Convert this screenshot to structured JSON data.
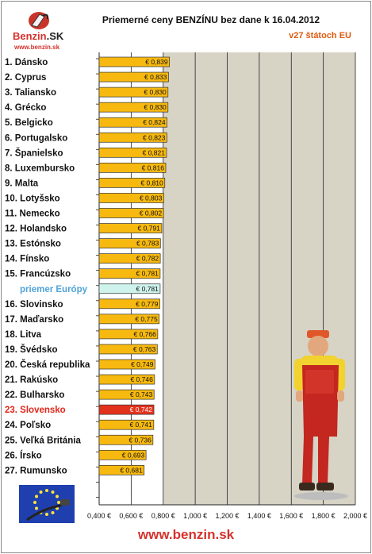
{
  "logo": {
    "word_main": "Benzin",
    "word_suffix": ".SK",
    "url": "www.benzin.sk"
  },
  "footer": {
    "url": "www.benzin.sk"
  },
  "chart_data": {
    "type": "bar",
    "orientation": "horizontal",
    "title": "Priemerné ceny BENZÍNU bez dane k 16.04.2012",
    "subtitle": "v27 štátoch EU",
    "xlim": [
      0.4,
      2.0
    ],
    "xticks": [
      0.4,
      0.6,
      0.8,
      1.0,
      1.2,
      1.4,
      1.6,
      1.8,
      2.0
    ],
    "xtick_labels": [
      "0,400 €",
      "0,600 €",
      "0,800 €",
      "1,000 €",
      "1,200 €",
      "1,400 €",
      "1,600 €",
      "1,800 €",
      "2,000 €"
    ],
    "grid": true,
    "colors": {
      "bar": "#f7b90f",
      "average": "#cef3ec",
      "highlight": "#e3321c",
      "plot_bg": "#d7d3c5"
    },
    "categories": [
      "1. Dánsko",
      "2. Cyprus",
      "3. Taliansko",
      "4. Grécko",
      "5. Belgicko",
      "6. Portugalsko",
      "7. Španielsko",
      "8. Luxembursko",
      "9. Malta",
      "10. Lotyšsko",
      "11. Nemecko",
      "12. Holandsko",
      "13. Estónsko",
      "14. Fínsko",
      "15. Francúzsko",
      "priemer Európy",
      "16. Slovinsko",
      "17. Maďarsko",
      "18. Litva",
      "19. Švédsko",
      "20. Česká republika",
      "21. Rakúsko",
      "22. Bulharsko",
      "23. Slovensko",
      "24. Poľsko",
      "25. Veľká Británia",
      "26. Írsko",
      "27. Rumunsko"
    ],
    "values": [
      0.839,
      0.833,
      0.83,
      0.83,
      0.824,
      0.823,
      0.821,
      0.816,
      0.81,
      0.803,
      0.802,
      0.791,
      0.783,
      0.782,
      0.781,
      0.781,
      0.779,
      0.775,
      0.766,
      0.763,
      0.749,
      0.746,
      0.743,
      0.742,
      0.741,
      0.736,
      0.693,
      0.681
    ],
    "value_labels": [
      "€ 0,839",
      "€ 0,833",
      "€ 0,830",
      "€ 0,830",
      "€ 0,824",
      "€ 0,823",
      "€ 0,821",
      "€ 0,816",
      "€ 0,810",
      "€ 0,803",
      "€ 0,802",
      "€ 0,791",
      "€ 0,783",
      "€ 0,782",
      "€ 0,781",
      "€ 0,781",
      "€ 0,779",
      "€ 0,775",
      "€ 0,766",
      "€ 0,763",
      "€ 0,749",
      "€ 0,746",
      "€ 0,743",
      "€ 0,742",
      "€ 0,741",
      "€ 0,736",
      "€ 0,693",
      "€ 0,681"
    ],
    "average_index": 15,
    "highlight_index": 23
  }
}
